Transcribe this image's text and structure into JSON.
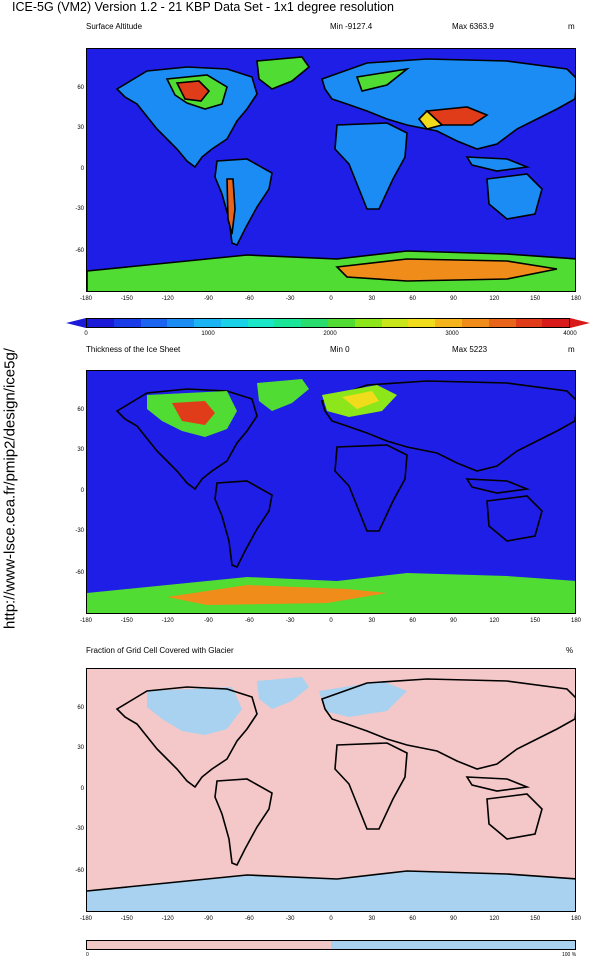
{
  "header": {
    "title": "ICE-5G (VM2) Version 1.2 - 21 KBP Data Set - 1x1 degree resolution",
    "side_label": "http://www-lsce.cea.fr/pmip2/design/ice5g/"
  },
  "panels": [
    {
      "name": "surface-altitude",
      "title": "Surface Altitude",
      "min_label": "Min -9127.4",
      "max_label": "Max 6363.9",
      "unit": "m",
      "min": -9127.4,
      "max": 6363.9
    },
    {
      "name": "ice-thickness",
      "title": "Thickness of the Ice Sheet",
      "min_label": "Min 0",
      "max_label": "Max 5223",
      "unit": "m",
      "min": 0,
      "max": 5223
    },
    {
      "name": "glacier-fraction",
      "title": "Fraction of Grid Cell Covered with Glacier",
      "min_label": "",
      "max_label": "",
      "unit": "%"
    }
  ],
  "axes": {
    "x_ticks": [
      "-180",
      "-150",
      "-120",
      "-90",
      "-60",
      "-30",
      "0",
      "30",
      "60",
      "90",
      "120",
      "150",
      "180"
    ],
    "y_ticks": [
      "60",
      "30",
      "0",
      "-30",
      "-60"
    ]
  },
  "colorbar": {
    "labels": [
      "0",
      "1000",
      "2000",
      "3000",
      "4000"
    ],
    "colors": [
      "#1a1ad8",
      "#1a3ce8",
      "#1a64f0",
      "#1a8cf4",
      "#1ab4f4",
      "#1ad2e8",
      "#1ae6c8",
      "#1ae69a",
      "#28dc6e",
      "#50dc32",
      "#8ce61a",
      "#c8e61a",
      "#f0dc1a",
      "#f4b41a",
      "#f08c1a",
      "#e8641a",
      "#e03c1a",
      "#d81a1a"
    ]
  },
  "colorbar2": {
    "labels": [
      "0",
      "100 %"
    ],
    "colors": [
      "#f0c8c8",
      "#a8d2f0"
    ]
  },
  "map_colors": {
    "ocean": "#1e1ee6",
    "land_low": "#1a8cf4",
    "land_mid": "#50dc32",
    "land_high": "#f0dc1a",
    "ice_peak": "#e03c1a",
    "no_glacier": "#f4c8c8",
    "glacier": "#a8d2f0"
  }
}
